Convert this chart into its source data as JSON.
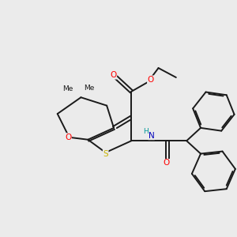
{
  "bg_color": "#ebebeb",
  "atom_colors": {
    "S": "#c8b400",
    "O": "#ff0000",
    "N": "#0000bb",
    "H": "#009999",
    "C": "#1a1a1a"
  },
  "line_color": "#1a1a1a",
  "line_width": 1.4
}
